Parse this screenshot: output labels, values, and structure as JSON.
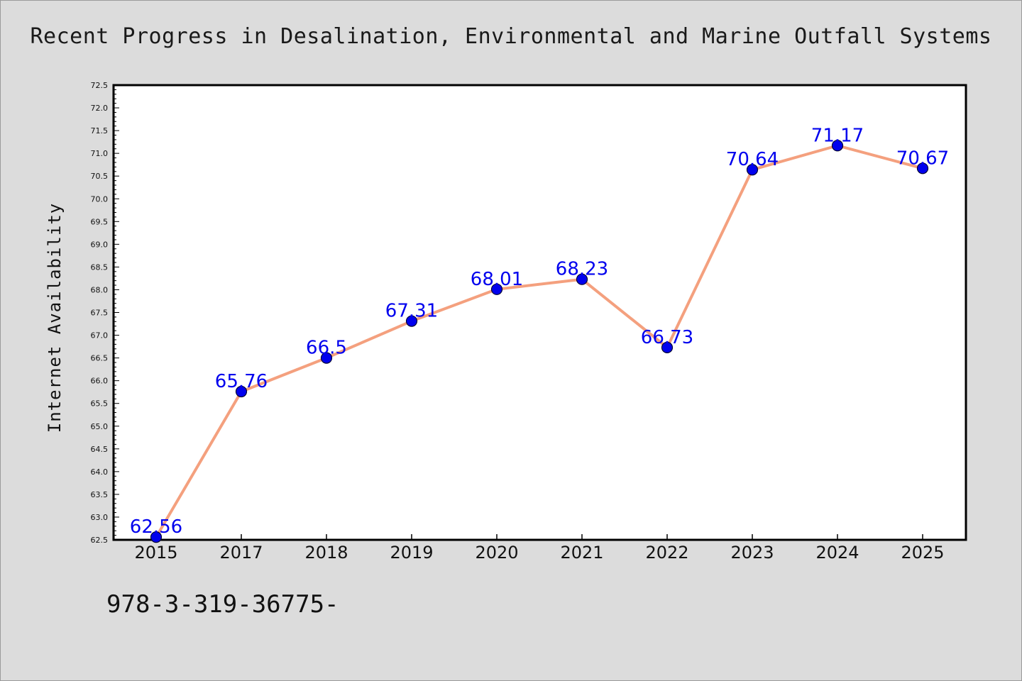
{
  "title": "Recent Progress in Desalination, Environmental and Marine Outfall Systems",
  "footnote": "978-3-319-36775-",
  "chart_data": {
    "type": "line",
    "title": "Recent Progress in Desalination, Environmental and Marine Outfall Systems",
    "xlabel": "",
    "ylabel": "Internet Availability",
    "categories": [
      "2015",
      "2017",
      "2018",
      "2019",
      "2020",
      "2021",
      "2022",
      "2023",
      "2024",
      "2025"
    ],
    "series": [
      {
        "values": [
          62.56,
          65.76,
          66.5,
          67.31,
          68.01,
          68.23,
          66.73,
          70.64,
          71.17,
          70.67
        ],
        "labels": [
          "62.56",
          "65.76",
          "66.5",
          "67.31",
          "68.01",
          "68.23",
          "66.73",
          "70.64",
          "71.17",
          "70.67"
        ]
      }
    ],
    "ylim": [
      62.5,
      72.5
    ],
    "yticks": [
      "62.5",
      "63.0",
      "63.5",
      "64.0",
      "64.5",
      "65.0",
      "65.5",
      "66.0",
      "66.5",
      "67.0",
      "67.5",
      "68.0",
      "68.5",
      "69.0",
      "69.5",
      "70.0",
      "70.5",
      "71.0",
      "71.5",
      "72.0",
      "72.5"
    ],
    "grid": false,
    "colors": {
      "line": "#f4a07e",
      "marker": "#0000ee",
      "marker_edge": "#000033",
      "label": "#0000ee",
      "plot_bg": "#ffffff",
      "page_bg": "#dcdcdc"
    }
  }
}
